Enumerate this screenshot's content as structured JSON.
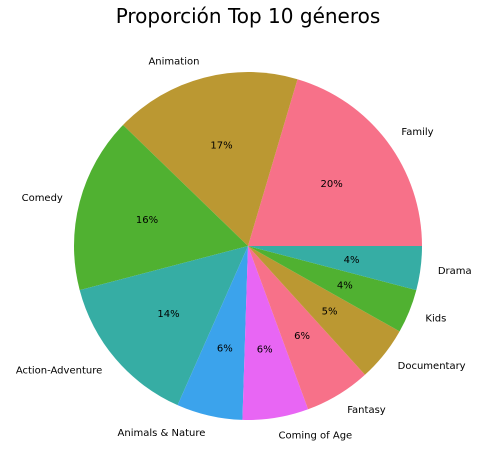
{
  "chart_data": {
    "type": "pie",
    "title": "Proporción Top 10 géneros",
    "categories": [
      "Family",
      "Animation",
      "Comedy",
      "Action-Adventure",
      "Animals & Nature",
      "Coming of Age",
      "Fantasy",
      "Documentary",
      "Kids",
      "Drama"
    ],
    "values": [
      20,
      17,
      16,
      14,
      6,
      6,
      6,
      5,
      4,
      4
    ],
    "percent_labels": [
      "20%",
      "17%",
      "16%",
      "14%",
      "6%",
      "6%",
      "6%",
      "5%",
      "4%",
      "4%"
    ],
    "colors": [
      "#f77189",
      "#bb9832",
      "#50b131",
      "#36ada4",
      "#3ba3ec",
      "#e866f4",
      "#f77189",
      "#bb9832",
      "#50b131",
      "#36ada4"
    ],
    "start_angle_deg": 0,
    "direction": "counterclockwise",
    "legend": "none"
  }
}
